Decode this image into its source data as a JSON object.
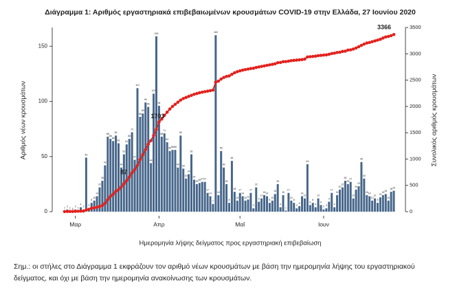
{
  "chart_data": {
    "type": "bar-line",
    "title": "Διάγραμμα 1: Αριθμός εργαστηριακά επιβεβαιωμένων κρουσμάτων COVID-19 στην Ελλάδα, 27 Ιουνίου 2020",
    "xlabel": "Ημερομηνία λήψης δείγματος προς εργαστηριακή επιβεβαίωση",
    "ylabel": "Αριθμός νέων κρουσμάτων",
    "y2label": "Συνολικός αριθμός κρουσμάτων",
    "note": "Σημ.: οι στήλες στο Διάγραμμα 1 εκφράζουν τον αριθμό νέων κρουσμάτων με βάση την ημερομηνία λήψης του εργαστηριακού δείγματος, και όχι με βάση την ημερομηνία ανακοίνωσης των κρουσμάτων.",
    "categories": [
      null,
      null,
      null,
      null,
      "Μαρ",
      null,
      null,
      null,
      null,
      null,
      null,
      null,
      null,
      null,
      null,
      null,
      null,
      null,
      null,
      null,
      null,
      null,
      null,
      null,
      null,
      null,
      null,
      null,
      null,
      null,
      null,
      null,
      null,
      null,
      null,
      "Απρ",
      null,
      null,
      null,
      null,
      null,
      null,
      null,
      null,
      null,
      null,
      null,
      null,
      null,
      null,
      null,
      null,
      null,
      null,
      null,
      null,
      null,
      null,
      null,
      null,
      null,
      null,
      null,
      null,
      null,
      "Μαΐ",
      null,
      null,
      null,
      null,
      null,
      null,
      null,
      null,
      null,
      null,
      null,
      null,
      null,
      null,
      null,
      null,
      null,
      null,
      null,
      null,
      null,
      null,
      null,
      null,
      null,
      null,
      null,
      null,
      null,
      null,
      "Ιουν",
      null,
      null,
      null,
      null,
      null,
      null,
      null,
      null,
      null,
      null,
      null,
      null,
      null,
      null,
      null,
      null,
      null,
      null,
      null,
      null,
      null,
      null,
      null,
      null,
      null,
      null
    ],
    "series": [
      {
        "type": "bar",
        "color": "#46668a",
        "values": [
          1,
          2,
          1,
          0,
          2,
          1,
          4,
          2,
          49,
          3,
          8,
          10,
          14,
          22,
          28,
          42,
          68,
          66,
          64,
          69,
          62,
          40,
          52,
          61,
          66,
          72,
          47,
          112,
          86,
          89,
          99,
          95,
          44,
          107,
          159,
          96,
          68,
          71,
          63,
          55,
          56,
          56,
          40,
          69,
          39,
          30,
          34,
          52,
          29,
          25,
          26,
          27,
          27,
          17,
          14,
          7,
          160,
          15,
          55,
          40,
          25,
          8,
          46,
          18,
          10,
          17,
          14,
          10,
          11,
          17,
          3,
          22,
          9,
          12,
          15,
          14,
          8,
          10,
          16,
          25,
          4,
          15,
          1,
          17,
          10,
          8,
          3,
          5,
          14,
          12,
          43,
          6,
          8,
          4,
          12,
          6,
          2,
          3,
          9,
          17,
          4,
          15,
          20,
          22,
          28,
          25,
          27,
          12,
          20,
          23,
          45,
          30,
          15,
          14,
          10,
          12,
          8,
          13,
          15,
          16,
          10,
          18,
          19
        ]
      },
      {
        "type": "line",
        "axis": "y2",
        "color": "#e3211c",
        "values": [
          1,
          3,
          4,
          4,
          6,
          8,
          10,
          12,
          31,
          45,
          66,
          73,
          84,
          99,
          117,
          160,
          228,
          290,
          331,
          387,
          418,
          470,
          530,
          590,
          660,
          740,
          800,
          880,
          990,
          1080,
          1180,
          1280,
          1350,
          1450,
          1560,
          1703,
          1760,
          1830,
          1890,
          1950,
          2000,
          2040,
          2080,
          2120,
          2150,
          2170,
          2190,
          2210,
          2230,
          2245,
          2260,
          2270,
          2280,
          2290,
          2300,
          2310,
          2460,
          2480,
          2520,
          2550,
          2570,
          2580,
          2610,
          2640,
          2660,
          2676,
          2690,
          2700,
          2710,
          2720,
          2725,
          2740,
          2750,
          2760,
          2770,
          2780,
          2790,
          2800,
          2810,
          2830,
          2835,
          2850,
          2852,
          2860,
          2870,
          2875,
          2880,
          2885,
          2890,
          2900,
          2940,
          2945,
          2950,
          2955,
          2965,
          2970,
          2976,
          2980,
          2990,
          3005,
          3012,
          3025,
          3030,
          3045,
          3050,
          3070,
          3075,
          3090,
          3110,
          3135,
          3160,
          3185,
          3205,
          3215,
          3230,
          3245,
          3260,
          3275,
          3300,
          3320,
          3330,
          3345,
          3366
        ]
      }
    ],
    "annotations": [
      "87",
      "1703",
      "3366"
    ],
    "ylim": [
      0,
      167
    ],
    "yticks": [
      0,
      50,
      100,
      150
    ],
    "y2lim": [
      0,
      3500
    ],
    "y2ticks": [
      0,
      500,
      1000,
      1500,
      2000,
      2500,
      3000,
      3500
    ]
  }
}
